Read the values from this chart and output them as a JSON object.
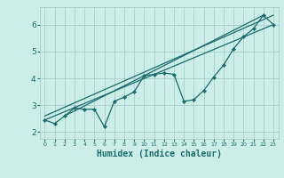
{
  "title": "",
  "xlabel": "Humidex (Indice chaleur)",
  "bg_color": "#cceee8",
  "grid_color": "#aacccc",
  "line_color": "#1a6b6b",
  "xlim": [
    -0.5,
    23.5
  ],
  "ylim": [
    1.75,
    6.65
  ],
  "xticks": [
    0,
    1,
    2,
    3,
    4,
    5,
    6,
    7,
    8,
    9,
    10,
    11,
    12,
    13,
    14,
    15,
    16,
    17,
    18,
    19,
    20,
    21,
    22,
    23
  ],
  "yticks": [
    2,
    3,
    4,
    5,
    6
  ],
  "data_line": [
    [
      0,
      2.45
    ],
    [
      1,
      2.32
    ],
    [
      2,
      2.6
    ],
    [
      3,
      2.9
    ],
    [
      4,
      2.85
    ],
    [
      5,
      2.85
    ],
    [
      6,
      2.2
    ],
    [
      7,
      3.15
    ],
    [
      8,
      3.3
    ],
    [
      9,
      3.5
    ],
    [
      10,
      4.1
    ],
    [
      11,
      4.15
    ],
    [
      12,
      4.2
    ],
    [
      13,
      4.15
    ],
    [
      14,
      3.15
    ],
    [
      15,
      3.2
    ],
    [
      16,
      3.55
    ],
    [
      17,
      4.05
    ],
    [
      18,
      4.5
    ],
    [
      19,
      5.1
    ],
    [
      20,
      5.55
    ],
    [
      21,
      5.85
    ],
    [
      22,
      6.35
    ],
    [
      23,
      6.0
    ]
  ],
  "trend_line1": [
    [
      0,
      2.45
    ],
    [
      23,
      6.0
    ]
  ],
  "trend_line2": [
    [
      0,
      2.6
    ],
    [
      23,
      6.35
    ]
  ],
  "trend_line3": [
    [
      2,
      2.6
    ],
    [
      22,
      6.35
    ]
  ]
}
